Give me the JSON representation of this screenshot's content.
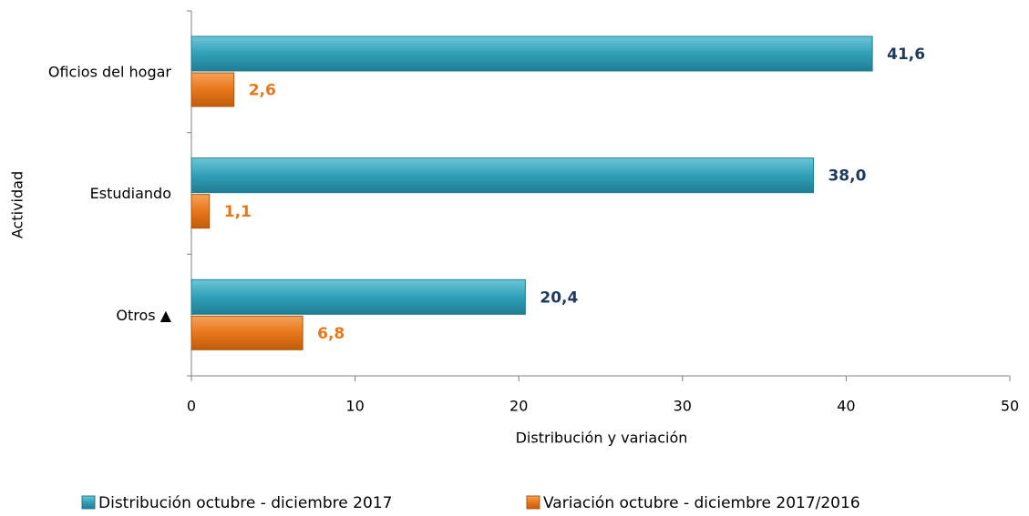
{
  "chart_data": {
    "type": "bar",
    "orientation": "horizontal",
    "categories": [
      "Oficios del hogar",
      "Estudiando",
      "Otros ▲"
    ],
    "series": [
      {
        "name": "Distribución octubre - diciembre 2017",
        "color": "#31a0b8",
        "label_color": "#1f3a5c",
        "values": [
          41.6,
          38.0,
          20.4
        ],
        "value_labels": [
          "41,6",
          "38,0",
          "20,4"
        ]
      },
      {
        "name": "Variación octubre - diciembre 2017/2016",
        "color": "#e8761a",
        "label_color": "#e8761a",
        "values": [
          2.6,
          1.1,
          6.8
        ],
        "value_labels": [
          "2,6",
          "1,1",
          "6,8"
        ]
      }
    ],
    "xlim": [
      0,
      50
    ],
    "xticks": [
      0,
      10,
      20,
      30,
      40,
      50
    ],
    "xlabel": "Distribución y variación",
    "ylabel": "Actividad",
    "legend": "bottom"
  }
}
